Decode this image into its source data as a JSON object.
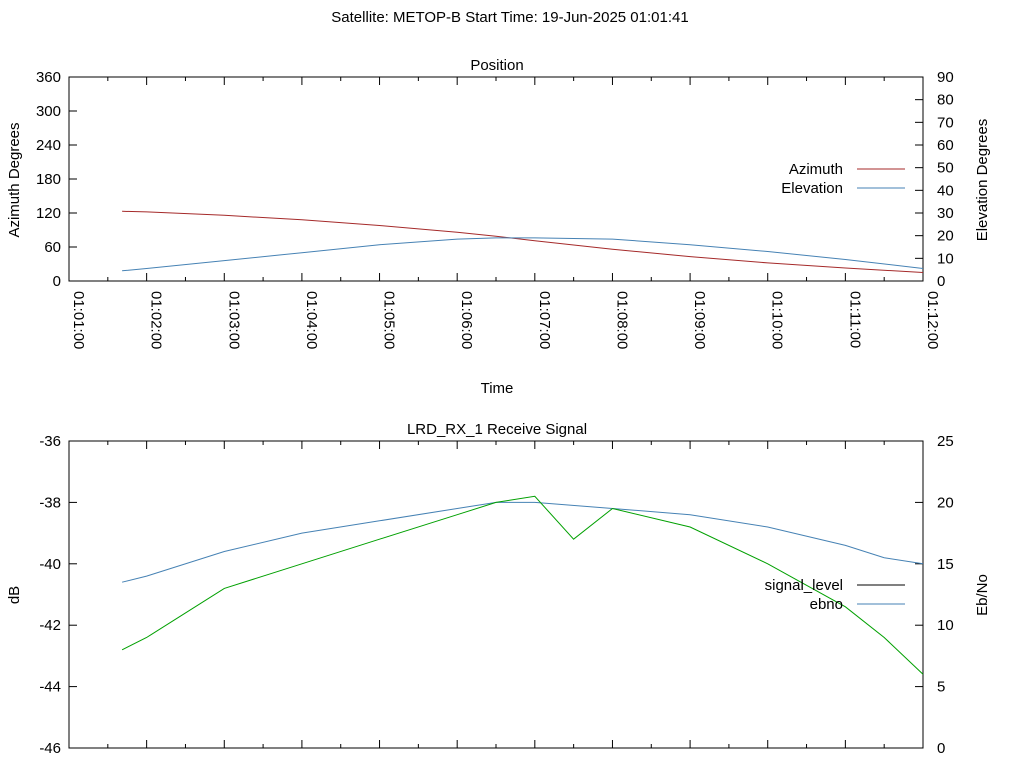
{
  "figure": {
    "suptitle": "Satellite: METOP-B    Start Time: 19-Jun-2025 01:01:41"
  },
  "chart_data": [
    {
      "type": "line",
      "title": "Position",
      "xlabel": "Time",
      "ylabel_left": "Azimuth Degrees",
      "ylabel_right": "Elevation Degrees",
      "xlim": [
        "01:01:00",
        "01:12:00"
      ],
      "ylim_left": [
        0,
        360
      ],
      "ylim_right": [
        0,
        90
      ],
      "yticks_left": [
        "0",
        "60",
        "120",
        "180",
        "240",
        "300",
        "360"
      ],
      "yticks_right": [
        "0",
        "10",
        "20",
        "30",
        "40",
        "50",
        "60",
        "70",
        "80",
        "90"
      ],
      "xticks": [
        "01:01:00",
        "01:02:00",
        "01:03:00",
        "01:04:00",
        "01:05:00",
        "01:06:00",
        "01:07:00",
        "01:08:00",
        "01:09:00",
        "01:10:00",
        "01:11:00",
        "01:12:00"
      ],
      "legend_position": "right",
      "series": [
        {
          "name": "Azimuth",
          "axis": "left",
          "color": "#a52a2a",
          "x": [
            "01:01:41",
            "01:02:00",
            "01:03:00",
            "01:04:00",
            "01:05:00",
            "01:06:00",
            "01:06:30",
            "01:07:00",
            "01:08:00",
            "01:09:00",
            "01:10:00",
            "01:11:00",
            "01:12:00"
          ],
          "y": [
            123,
            122,
            116,
            108,
            98,
            86,
            79,
            71,
            56,
            43,
            32,
            23,
            15
          ]
        },
        {
          "name": "Elevation",
          "axis": "right",
          "color": "#4682b4",
          "x": [
            "01:01:41",
            "01:02:00",
            "01:03:00",
            "01:04:00",
            "01:05:00",
            "01:06:00",
            "01:06:30",
            "01:07:00",
            "01:08:00",
            "01:09:00",
            "01:10:00",
            "01:11:00",
            "01:12:00"
          ],
          "y": [
            4.5,
            5.5,
            9,
            12.5,
            16,
            18.5,
            19,
            19,
            18.5,
            16,
            13,
            9.5,
            5.5
          ]
        }
      ]
    },
    {
      "type": "line",
      "title": "LRD_RX_1 Receive Signal",
      "ylabel_left": "dB",
      "ylabel_right": "Eb/No",
      "xlim": [
        "01:01:00",
        "01:12:00"
      ],
      "ylim_left": [
        -46,
        -36
      ],
      "ylim_right": [
        0,
        25
      ],
      "yticks_left": [
        "-46",
        "-44",
        "-42",
        "-40",
        "-38",
        "-36"
      ],
      "yticks_right": [
        "0",
        "5",
        "10",
        "15",
        "20",
        "25"
      ],
      "legend_position": "right",
      "series": [
        {
          "name": "signal_level",
          "axis": "left",
          "color": "#000000",
          "x": [],
          "y": []
        },
        {
          "name": "ebno",
          "axis": "right",
          "color": "#4682b4",
          "x": [
            "01:01:41",
            "01:02:00",
            "01:03:00",
            "01:04:00",
            "01:05:00",
            "01:06:00",
            "01:06:30",
            "01:07:00",
            "01:08:00",
            "01:09:00",
            "01:10:00",
            "01:11:00",
            "01:11:30",
            "01:12:00"
          ],
          "y": [
            13.5,
            14,
            16,
            17.5,
            18.5,
            19.5,
            20,
            20,
            19.5,
            19,
            18,
            16.5,
            15.5,
            15
          ]
        },
        {
          "name": "",
          "axis": "right",
          "color": "#00a000",
          "x": [
            "01:01:41",
            "01:02:00",
            "01:02:30",
            "01:03:00",
            "01:04:00",
            "01:05:00",
            "01:06:00",
            "01:06:30",
            "01:07:00",
            "01:07:30",
            "01:08:00",
            "01:09:00",
            "01:10:00",
            "01:11:00",
            "01:11:30",
            "01:12:00"
          ],
          "y": [
            8,
            9,
            11,
            13,
            15,
            17,
            19,
            20,
            20.5,
            17,
            19.5,
            18,
            15,
            11.5,
            9,
            6
          ]
        }
      ]
    }
  ]
}
